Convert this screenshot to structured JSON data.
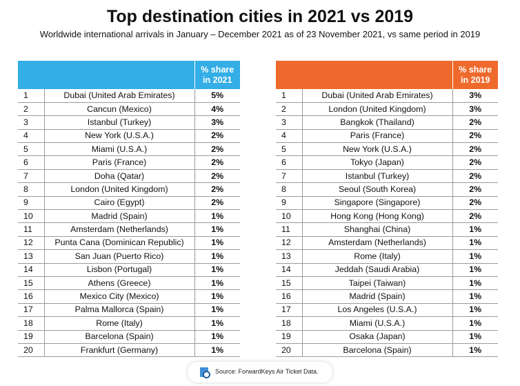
{
  "title": "Top destination cities in 2021 vs 2019",
  "subtitle": "Worldwide international arrivals in January – December 2021 as of 23 November 2021, vs same period in 2019",
  "colors": {
    "header_2021": "#33aee6",
    "header_2019": "#ee6a2c"
  },
  "source": "Source: ForwardKeys Air Ticket Data.",
  "chart_data": [
    {
      "type": "table",
      "columns": [
        "",
        "",
        "% share in 2021"
      ],
      "header_line1": "% share",
      "header_line2": "in 2021",
      "rows": [
        {
          "rank": "1",
          "city": "Dubai (United Arab Emirates)",
          "share": "5%"
        },
        {
          "rank": "2",
          "city": "Cancun (Mexico)",
          "share": "4%"
        },
        {
          "rank": "3",
          "city": "Istanbul (Turkey)",
          "share": "3%"
        },
        {
          "rank": "4",
          "city": "New York (U.S.A.)",
          "share": "2%"
        },
        {
          "rank": "5",
          "city": "Miami (U.S.A.)",
          "share": "2%"
        },
        {
          "rank": "6",
          "city": "Paris (France)",
          "share": "2%"
        },
        {
          "rank": "7",
          "city": "Doha (Qatar)",
          "share": "2%"
        },
        {
          "rank": "8",
          "city": "London (United Kingdom)",
          "share": "2%"
        },
        {
          "rank": "9",
          "city": "Cairo (Egypt)",
          "share": "2%"
        },
        {
          "rank": "10",
          "city": "Madrid (Spain)",
          "share": "1%"
        },
        {
          "rank": "11",
          "city": "Amsterdam (Netherlands)",
          "share": "1%"
        },
        {
          "rank": "12",
          "city": "Punta Cana (Dominican Republic)",
          "share": "1%"
        },
        {
          "rank": "13",
          "city": "San Juan (Puerto Rico)",
          "share": "1%"
        },
        {
          "rank": "14",
          "city": "Lisbon (Portugal)",
          "share": "1%"
        },
        {
          "rank": "15",
          "city": "Athens (Greece)",
          "share": "1%"
        },
        {
          "rank": "16",
          "city": "Mexico City (Mexico)",
          "share": "1%"
        },
        {
          "rank": "17",
          "city": "Palma Mallorca (Spain)",
          "share": "1%"
        },
        {
          "rank": "18",
          "city": "Rome (Italy)",
          "share": "1%"
        },
        {
          "rank": "19",
          "city": "Barcelona (Spain)",
          "share": "1%"
        },
        {
          "rank": "20",
          "city": "Frankfurt (Germany)",
          "share": "1%"
        }
      ]
    },
    {
      "type": "table",
      "columns": [
        "",
        "",
        "% share in 2019"
      ],
      "header_line1": "% share",
      "header_line2": "in 2019",
      "rows": [
        {
          "rank": "1",
          "city": "Dubai (United Arab Emirates)",
          "share": "3%"
        },
        {
          "rank": "2",
          "city": "London (United Kingdom)",
          "share": "3%"
        },
        {
          "rank": "3",
          "city": "Bangkok (Thailand)",
          "share": "2%"
        },
        {
          "rank": "4",
          "city": "Paris (France)",
          "share": "2%"
        },
        {
          "rank": "5",
          "city": "New York (U.S.A.)",
          "share": "2%"
        },
        {
          "rank": "6",
          "city": "Tokyo (Japan)",
          "share": "2%"
        },
        {
          "rank": "7",
          "city": "Istanbul (Turkey)",
          "share": "2%"
        },
        {
          "rank": "8",
          "city": "Seoul (South Korea)",
          "share": "2%"
        },
        {
          "rank": "9",
          "city": "Singapore (Singapore)",
          "share": "2%"
        },
        {
          "rank": "10",
          "city": "Hong Kong (Hong Kong)",
          "share": "2%"
        },
        {
          "rank": "11",
          "city": "Shanghai (China)",
          "share": "1%"
        },
        {
          "rank": "12",
          "city": "Amsterdam (Netherlands)",
          "share": "1%"
        },
        {
          "rank": "13",
          "city": "Rome (Italy)",
          "share": "1%"
        },
        {
          "rank": "14",
          "city": "Jeddah (Saudi Arabia)",
          "share": "1%"
        },
        {
          "rank": "15",
          "city": "Taipei (Taiwan)",
          "share": "1%"
        },
        {
          "rank": "16",
          "city": "Madrid (Spain)",
          "share": "1%"
        },
        {
          "rank": "17",
          "city": "Los Angeles (U.S.A.)",
          "share": "1%"
        },
        {
          "rank": "18",
          "city": "Miami (U.S.A.)",
          "share": "1%"
        },
        {
          "rank": "19",
          "city": "Osaka (Japan)",
          "share": "1%"
        },
        {
          "rank": "20",
          "city": "Barcelona (Spain)",
          "share": "1%"
        }
      ]
    }
  ]
}
